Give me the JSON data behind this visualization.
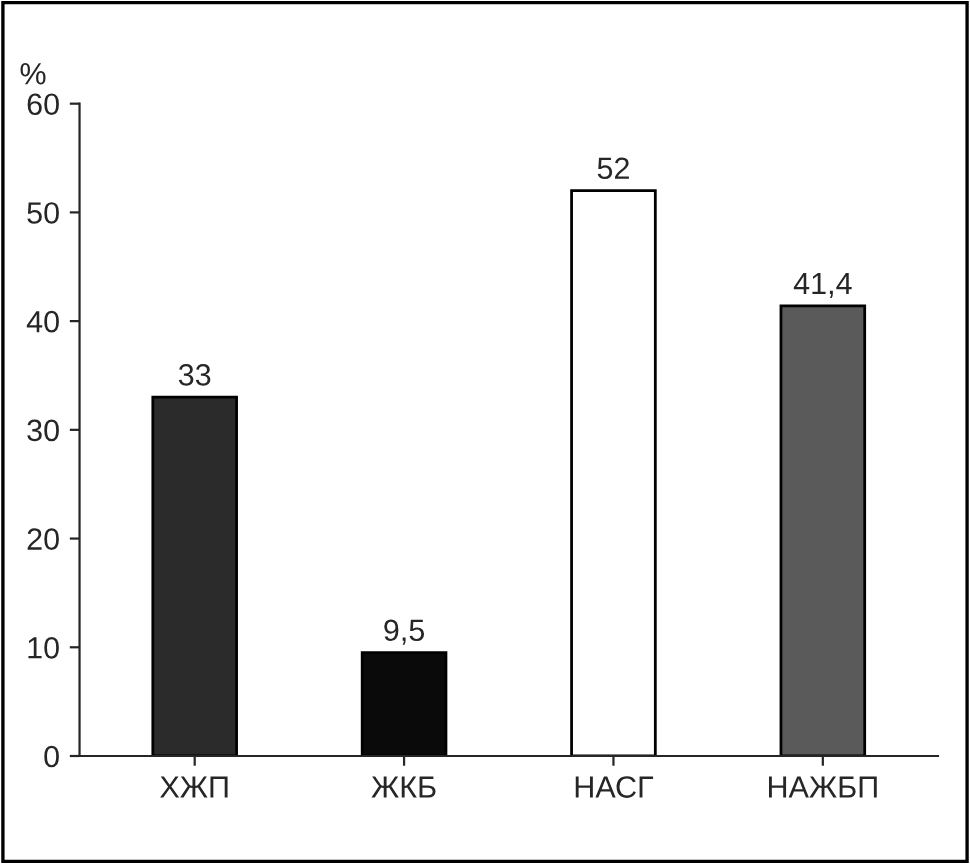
{
  "chart_data": {
    "type": "bar",
    "ylabel": "%",
    "categories": [
      "ХЖП",
      "ЖКБ",
      "НАСГ",
      "НАЖБП"
    ],
    "values": [
      33,
      9.5,
      52,
      41.4
    ],
    "colors": [
      "#2b2b2b",
      "#0a0a0a",
      "#ffffff",
      "#5a5a5a"
    ],
    "value_labels": [
      "33",
      "9,5",
      "52",
      "41,4"
    ],
    "ylim": [
      0,
      60
    ],
    "yticks": [
      0,
      10,
      20,
      30,
      40,
      50,
      60
    ],
    "grid": false,
    "legend": false
  }
}
